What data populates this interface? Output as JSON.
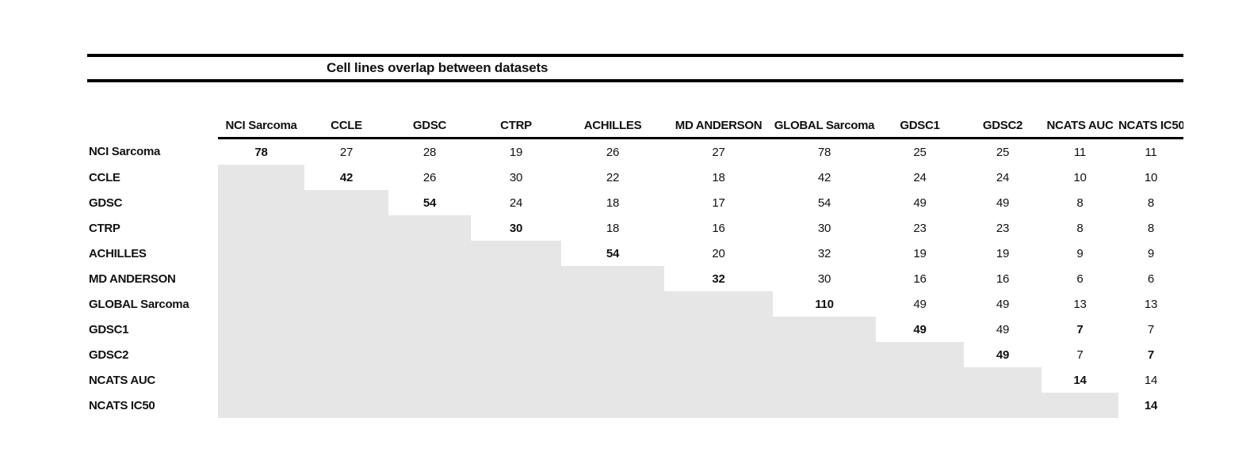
{
  "title": "Cell lines overlap between datasets",
  "colors": {
    "shade": "#e6e6e6",
    "text": "#111111",
    "rule": "#000000"
  },
  "chart_data": {
    "type": "table",
    "title": "Cell lines overlap between datasets",
    "columns": [
      "NCI Sarcoma",
      "CCLE",
      "GDSC",
      "CTRP",
      "ACHILLES",
      "MD ANDERSON",
      "GLOBAL Sarcoma",
      "GDSC1",
      "GDSC2",
      "NCATS AUC",
      "NCATS IC50"
    ],
    "rows": [
      "NCI Sarcoma",
      "CCLE",
      "GDSC",
      "CTRP",
      "ACHILLES",
      "MD ANDERSON",
      "GLOBAL Sarcoma",
      "GDSC1",
      "GDSC2",
      "NCATS AUC",
      "NCATS IC50"
    ],
    "matrix": [
      [
        78,
        27,
        28,
        19,
        26,
        27,
        78,
        25,
        25,
        11,
        11
      ],
      [
        null,
        42,
        26,
        30,
        22,
        18,
        42,
        24,
        24,
        10,
        10
      ],
      [
        null,
        null,
        54,
        24,
        18,
        17,
        54,
        49,
        49,
        8,
        8
      ],
      [
        null,
        null,
        null,
        30,
        18,
        16,
        30,
        23,
        23,
        8,
        8
      ],
      [
        null,
        null,
        null,
        null,
        54,
        20,
        32,
        19,
        19,
        9,
        9
      ],
      [
        null,
        null,
        null,
        null,
        null,
        32,
        30,
        16,
        16,
        6,
        6
      ],
      [
        null,
        null,
        null,
        null,
        null,
        null,
        110,
        49,
        49,
        13,
        13
      ],
      [
        null,
        null,
        null,
        null,
        null,
        null,
        null,
        49,
        49,
        7,
        7
      ],
      [
        null,
        null,
        null,
        null,
        null,
        null,
        null,
        null,
        49,
        7,
        7
      ],
      [
        null,
        null,
        null,
        null,
        null,
        null,
        null,
        null,
        null,
        14,
        14
      ],
      [
        null,
        null,
        null,
        null,
        null,
        null,
        null,
        null,
        null,
        null,
        14
      ]
    ],
    "bold_cells": [
      [
        0,
        0
      ],
      [
        1,
        1
      ],
      [
        2,
        2
      ],
      [
        3,
        3
      ],
      [
        4,
        4
      ],
      [
        5,
        5
      ],
      [
        6,
        6
      ],
      [
        7,
        7
      ],
      [
        8,
        8
      ],
      [
        9,
        9
      ],
      [
        10,
        10
      ],
      [
        7,
        9
      ],
      [
        8,
        10
      ]
    ],
    "shaded_meaning": "lower-triangle cells (duplicate of upper triangle) are filled gray",
    "layout_hints": {
      "grid": false,
      "double_rule_title_band": true,
      "header_underline": true
    }
  }
}
